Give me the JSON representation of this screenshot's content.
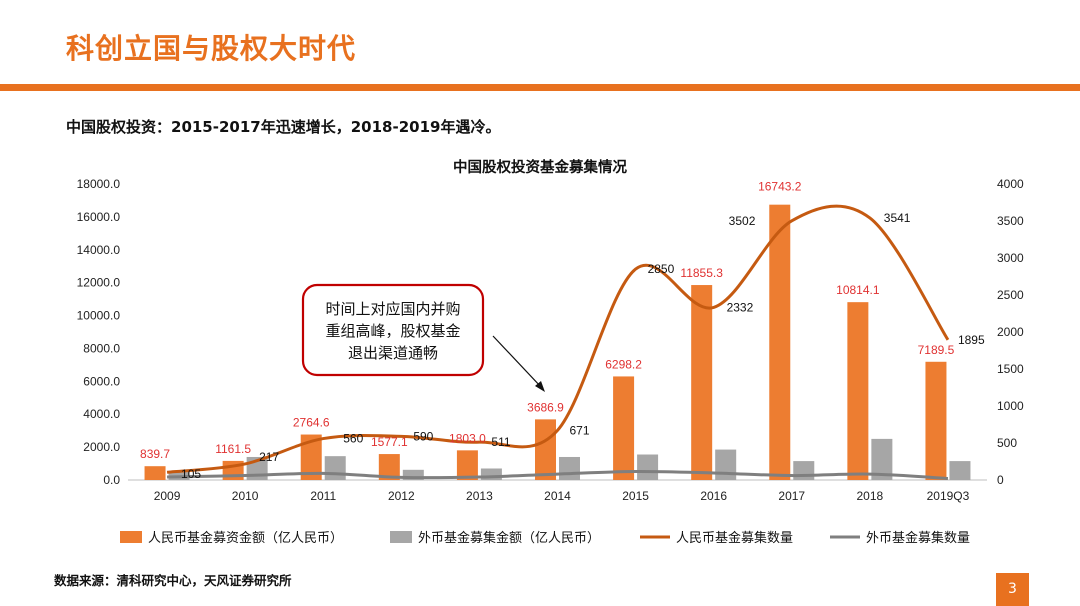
{
  "page": {
    "title": "科创立国与股权大时代",
    "subtitle": "中国股权投资：2015-2017年迅速增长，2018-2019年遇冷。",
    "source": "数据来源：清科研究中心，天风证券研究所",
    "page_number": "3"
  },
  "callout": {
    "lines": [
      "时间上对应国内并购",
      "重组高峰，股权基金",
      "退出渠道通畅"
    ]
  },
  "colors": {
    "accent": "#e8711f",
    "rmb_bar": "#ed7d31",
    "fx_bar": "#a6a6a6",
    "rmb_line": "#c55a11",
    "fx_line": "#7f7f7f",
    "value_label": "#e03232",
    "callout_border": "#c00000"
  },
  "chart_data": {
    "type": "bar",
    "title": "中国股权投资基金募集情况",
    "categories": [
      "2009",
      "2010",
      "2011",
      "2012",
      "2013",
      "2014",
      "2015",
      "2016",
      "2017",
      "2018",
      "2019Q3"
    ],
    "ylim_left": [
      0,
      18000
    ],
    "yticks_left": [
      "0.0",
      "2000.0",
      "4000.0",
      "6000.0",
      "8000.0",
      "10000.0",
      "12000.0",
      "14000.0",
      "16000.0",
      "18000.0"
    ],
    "ylim_right": [
      0,
      4000
    ],
    "yticks_right": [
      "0",
      "500",
      "1000",
      "1500",
      "2000",
      "2500",
      "3000",
      "3500",
      "4000"
    ],
    "legend_position": "bottom",
    "series": [
      {
        "name": "人民币基金募资金额（亿人民币）",
        "kind": "bar",
        "axis": "left",
        "values": [
          839.7,
          1161.5,
          2764.6,
          1577.1,
          1803.0,
          3686.9,
          6298.2,
          11855.3,
          16743.2,
          10814.1,
          7189.5
        ],
        "labels": [
          "839.7",
          "1161.5",
          "2764.6",
          "1577.1",
          "1803.0",
          "3686.9",
          "6298.2",
          "11855.3",
          "16743.2",
          "10814.1",
          "7189.5"
        ]
      },
      {
        "name": "外币基金募集金额（亿人民币）",
        "kind": "bar",
        "axis": "left",
        "values": [
          480,
          1400,
          1450,
          620,
          700,
          1400,
          1550,
          1850,
          1150,
          2500,
          1150
        ]
      },
      {
        "name": "人民币基金募集数量",
        "kind": "line",
        "axis": "right",
        "values": [
          105,
          217,
          560,
          590,
          511,
          671,
          2850,
          2332,
          3502,
          3541,
          1895
        ],
        "labels": [
          "105",
          "217",
          "560",
          "590",
          "511",
          "671",
          "2850",
          "2332",
          "3502",
          "3541",
          "1895"
        ]
      },
      {
        "name": "外币基金募集数量",
        "kind": "line",
        "axis": "right",
        "values": [
          40,
          60,
          90,
          35,
          40,
          80,
          115,
          95,
          60,
          80,
          20
        ]
      }
    ]
  }
}
